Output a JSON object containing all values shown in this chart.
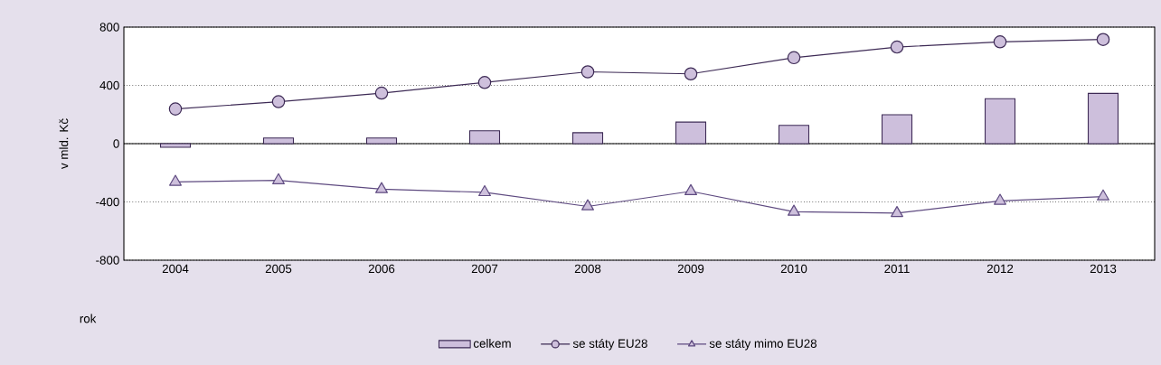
{
  "chart_data": {
    "type": "bar",
    "xlabel": "rok",
    "ylabel": "v mld. Kč",
    "categories": [
      "2004",
      "2005",
      "2006",
      "2007",
      "2008",
      "2009",
      "2010",
      "2011",
      "2012",
      "2013"
    ],
    "series": [
      {
        "name": "celkem",
        "color": "#cdbfdc",
        "values": [
          -25,
          39,
          39,
          88,
          75,
          148,
          125,
          198,
          309,
          345
        ]
      },
      {
        "name": "se státy EU28",
        "type": "line",
        "marker": "circle",
        "color": "#3d2a55",
        "values": [
          238,
          288,
          347,
          420,
          493,
          479,
          590,
          663,
          699,
          715
        ]
      },
      {
        "name": "se státy mimo EU28",
        "type": "line",
        "marker": "triangle",
        "color": "#5e4a80",
        "values": [
          -263,
          -252,
          -313,
          -334,
          -431,
          -327,
          -468,
          -477,
          -393,
          -363
        ]
      }
    ],
    "ylim": [
      -800,
      800
    ],
    "yticks": [
      -800,
      -400,
      0,
      400,
      800
    ],
    "grid": "y",
    "legend": "bottom",
    "ref_lines": [
      {
        "axis": "y",
        "value": 0
      }
    ]
  }
}
